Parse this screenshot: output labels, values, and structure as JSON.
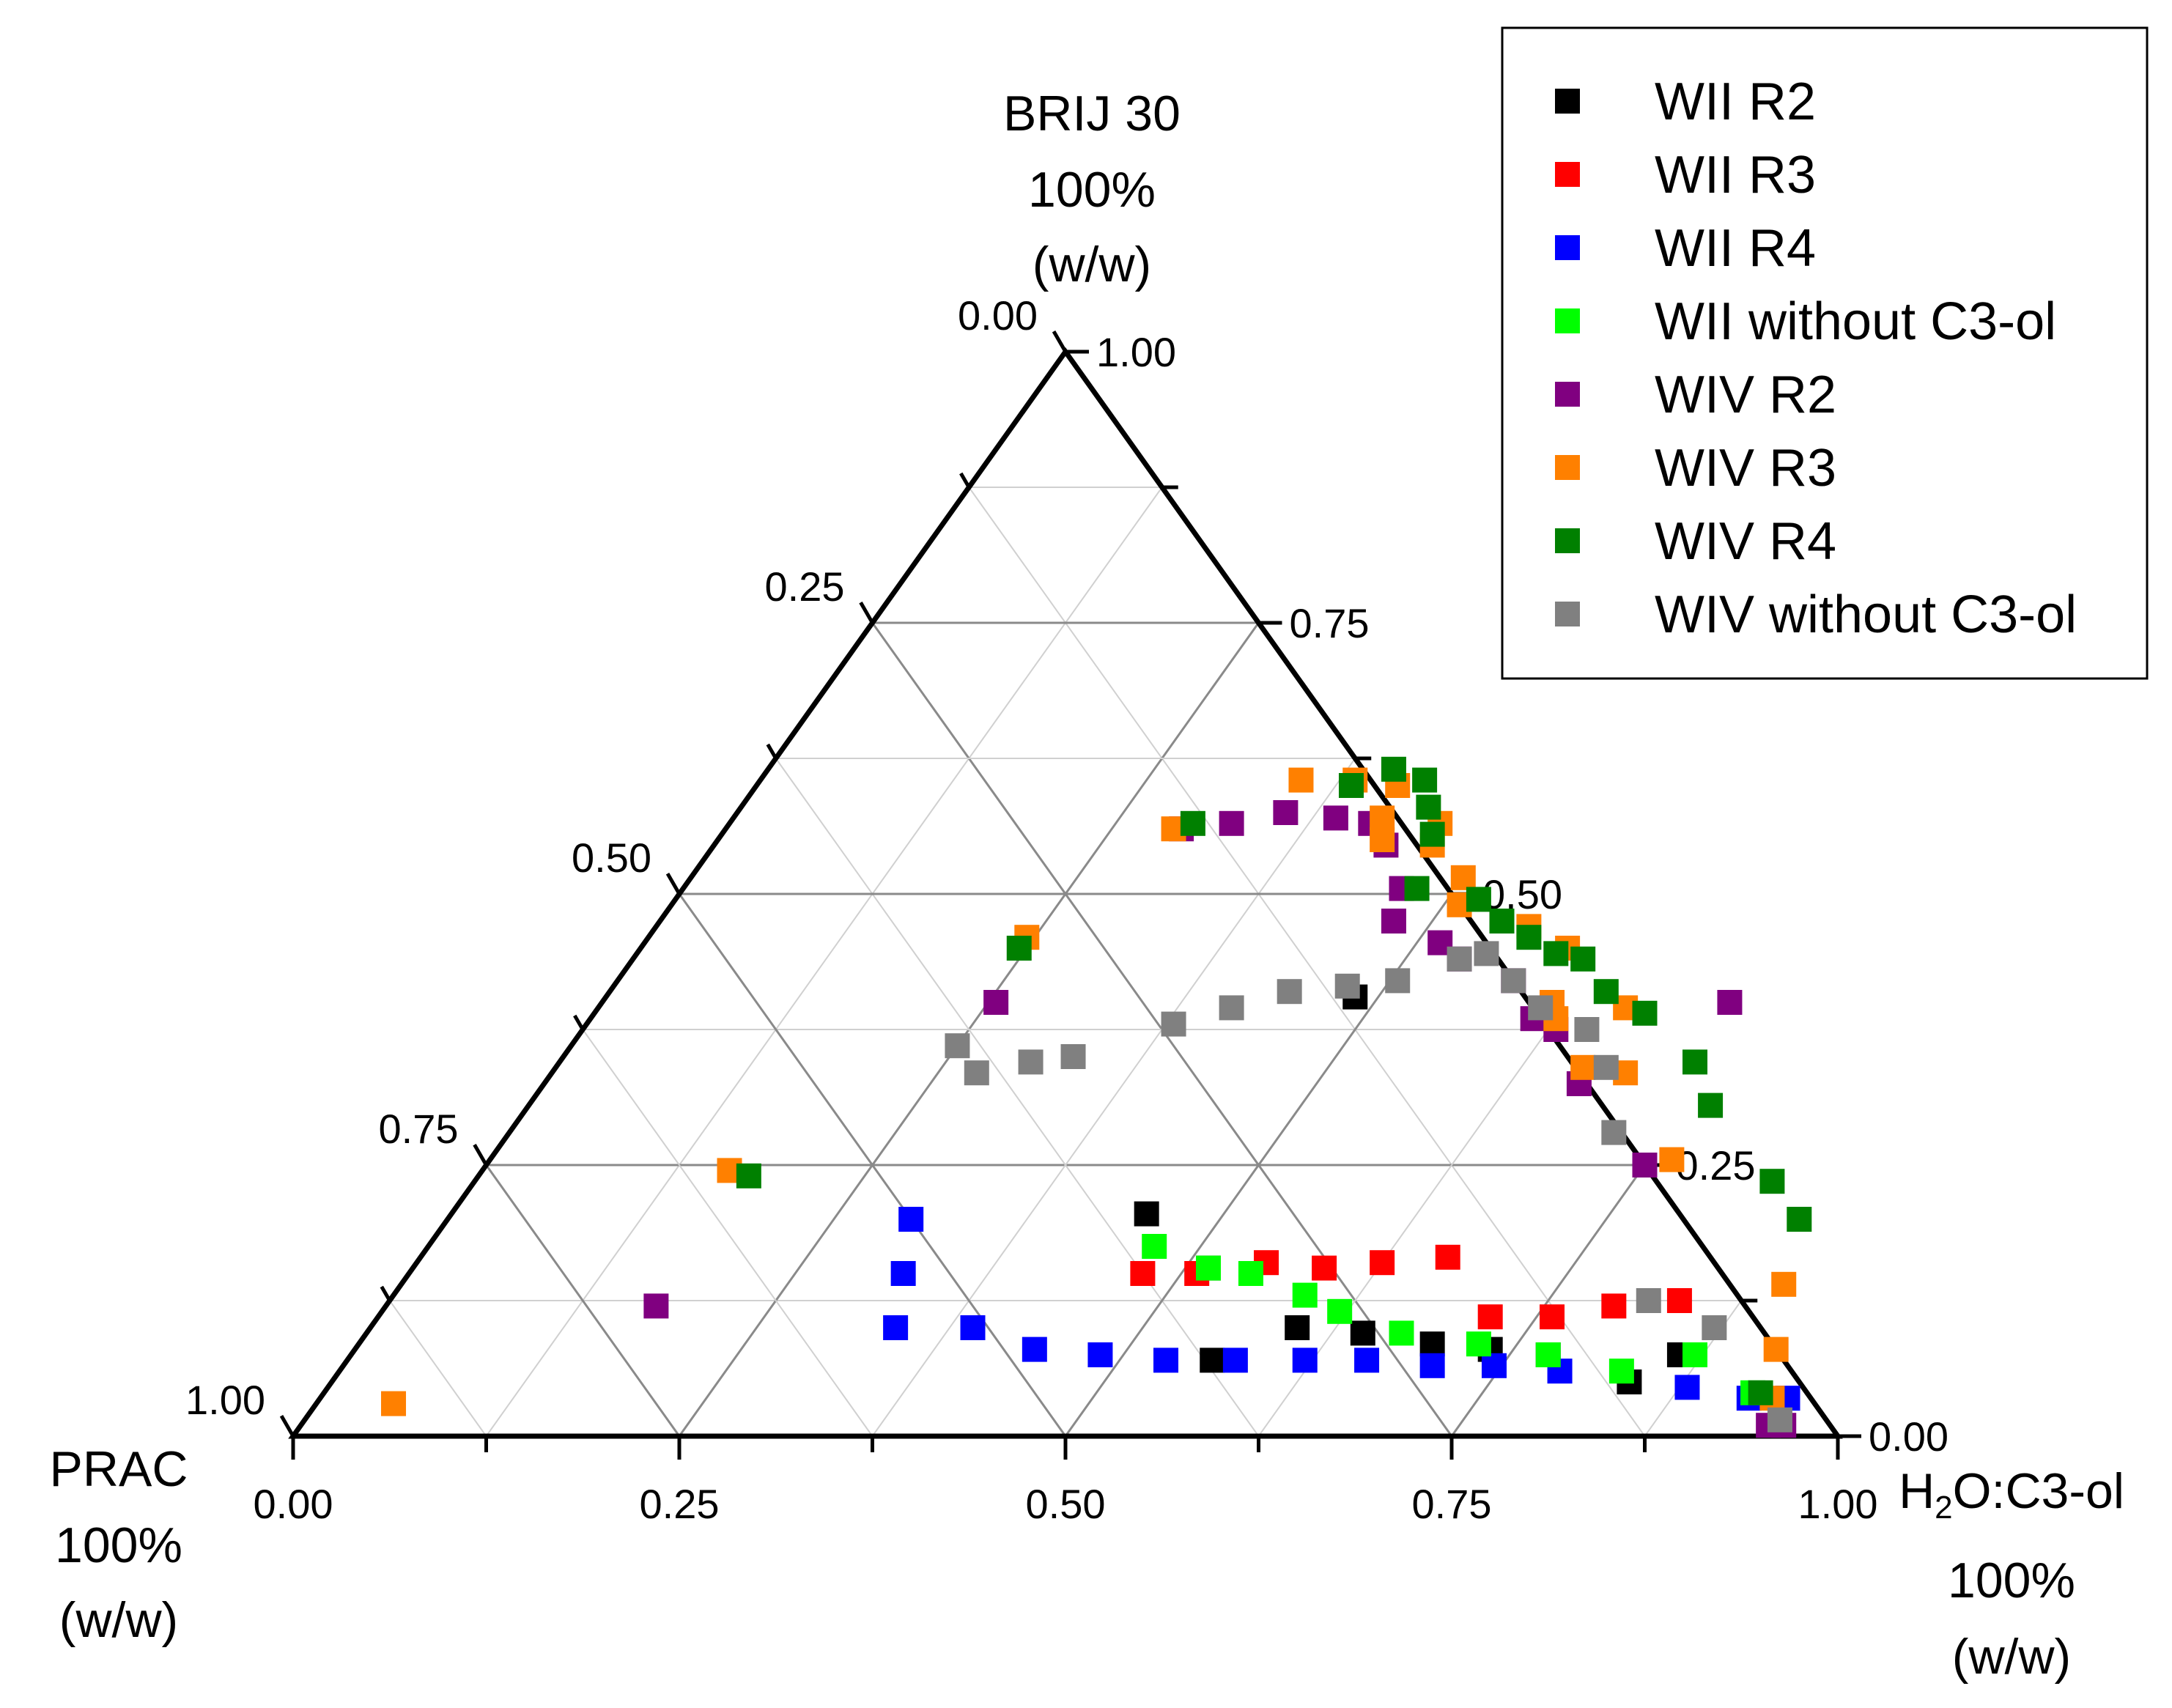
{
  "chart_data": {
    "type": "scatter",
    "subtype": "ternary",
    "components": {
      "top": {
        "name": "BRIJ 30",
        "pct": "100%",
        "unit": "(w/w)"
      },
      "left": {
        "name": "PRAC",
        "pct": "100%",
        "unit": "(w/w)"
      },
      "right": {
        "name_main": "H",
        "name_sub": "2",
        "name_rest": "O:C3-ol",
        "pct": "100%",
        "unit": "(w/w)"
      }
    },
    "ticks": {
      "bottom": [
        "0.00",
        "0.25",
        "0.50",
        "0.75",
        "1.00"
      ],
      "left": [
        "0.00",
        "0.25",
        "0.50",
        "0.75",
        "1.00"
      ],
      "right": [
        "0.00",
        "0.25",
        "0.50",
        "0.75",
        "1.00"
      ]
    },
    "grid_step": 0.125,
    "legend_position": "top-right",
    "series": [
      {
        "name": "WII R2",
        "color": "#000000",
        "points": [
          [
            0.485,
            0.405
          ],
          [
            0.45,
            0.205
          ],
          [
            0.515,
            0.155
          ],
          [
            0.56,
            0.07
          ],
          [
            0.6,
            0.1
          ],
          [
            0.645,
            0.095
          ],
          [
            0.695,
            0.085
          ],
          [
            0.735,
            0.08
          ],
          [
            0.775,
            0.075
          ],
          [
            0.84,
            0.05
          ],
          [
            0.86,
            0.075
          ]
        ]
      },
      {
        "name": "WII R3",
        "color": "#ff0000",
        "points": [
          [
            0.475,
            0.15
          ],
          [
            0.51,
            0.15
          ],
          [
            0.55,
            0.16
          ],
          [
            0.59,
            0.155
          ],
          [
            0.625,
            0.16
          ],
          [
            0.665,
            0.165
          ],
          [
            0.72,
            0.11
          ],
          [
            0.76,
            0.11
          ],
          [
            0.795,
            0.12
          ],
          [
            0.835,
            0.125
          ]
        ]
      },
      {
        "name": "WII R4",
        "color": "#0000ff",
        "points": [
          [
            0.3,
            0.2
          ],
          [
            0.32,
            0.15
          ],
          [
            0.34,
            0.1
          ],
          [
            0.39,
            0.1
          ],
          [
            0.44,
            0.08
          ],
          [
            0.485,
            0.075
          ],
          [
            0.53,
            0.07
          ],
          [
            0.575,
            0.07
          ],
          [
            0.62,
            0.07
          ],
          [
            0.66,
            0.07
          ],
          [
            0.705,
            0.065
          ],
          [
            0.745,
            0.065
          ],
          [
            0.79,
            0.06
          ],
          [
            0.88,
            0.045
          ],
          [
            0.925,
            0.035
          ],
          [
            0.95,
            0.035
          ]
        ]
      },
      {
        "name": "WII without C3-ol",
        "color": "#00ff00",
        "points": [
          [
            0.47,
            0.175
          ],
          [
            0.515,
            0.155
          ],
          [
            0.545,
            0.15
          ],
          [
            0.59,
            0.13
          ],
          [
            0.62,
            0.115
          ],
          [
            0.67,
            0.095
          ],
          [
            0.725,
            0.085
          ],
          [
            0.775,
            0.075
          ],
          [
            0.83,
            0.06
          ],
          [
            0.87,
            0.075
          ],
          [
            0.925,
            0.04
          ]
        ]
      },
      {
        "name": "WIV R2",
        "color": "#800080",
        "points": [
          [
            0.175,
            0.12
          ],
          [
            0.255,
            0.4
          ],
          [
            0.295,
            0.56
          ],
          [
            0.325,
            0.565
          ],
          [
            0.355,
            0.575
          ],
          [
            0.39,
            0.57
          ],
          [
            0.415,
            0.565
          ],
          [
            0.435,
            0.545
          ],
          [
            0.465,
            0.505
          ],
          [
            0.475,
            0.475
          ],
          [
            0.515,
            0.455
          ],
          [
            0.535,
            0.44
          ],
          [
            0.58,
            0.42
          ],
          [
            0.61,
            0.385
          ],
          [
            0.63,
            0.375
          ],
          [
            0.67,
            0.325
          ],
          [
            0.73,
            0.4
          ],
          [
            0.75,
            0.25
          ],
          [
            0.95,
            0.01
          ],
          [
            0.96,
            0.01
          ]
        ]
      },
      {
        "name": "WIV R3",
        "color": "#ff8000",
        "points": [
          [
            0.05,
            0.03
          ],
          [
            0.16,
            0.245
          ],
          [
            0.245,
            0.46
          ],
          [
            0.29,
            0.56
          ],
          [
            0.35,
            0.605
          ],
          [
            0.385,
            0.605
          ],
          [
            0.415,
            0.6
          ],
          [
            0.42,
            0.57
          ],
          [
            0.43,
            0.55
          ],
          [
            0.46,
            0.565
          ],
          [
            0.465,
            0.545
          ],
          [
            0.5,
            0.515
          ],
          [
            0.51,
            0.49
          ],
          [
            0.565,
            0.47
          ],
          [
            0.6,
            0.45
          ],
          [
            0.615,
            0.4
          ],
          [
            0.625,
            0.385
          ],
          [
            0.665,
            0.395
          ],
          [
            0.665,
            0.34
          ],
          [
            0.695,
            0.335
          ],
          [
            0.765,
            0.255
          ],
          [
            0.895,
            0.14
          ],
          [
            0.92,
            0.08
          ],
          [
            0.94,
            0.035
          ]
        ]
      },
      {
        "name": "WIV R4",
        "color": "#008000",
        "points": [
          [
            0.175,
            0.24
          ],
          [
            0.245,
            0.45
          ],
          [
            0.3,
            0.565
          ],
          [
            0.385,
            0.6
          ],
          [
            0.405,
            0.615
          ],
          [
            0.43,
            0.605
          ],
          [
            0.445,
            0.58
          ],
          [
            0.46,
            0.555
          ],
          [
            0.475,
            0.505
          ],
          [
            0.52,
            0.495
          ],
          [
            0.545,
            0.475
          ],
          [
            0.57,
            0.46
          ],
          [
            0.595,
            0.445
          ],
          [
            0.615,
            0.44
          ],
          [
            0.645,
            0.41
          ],
          [
            0.68,
            0.39
          ],
          [
            0.735,
            0.345
          ],
          [
            0.765,
            0.305
          ],
          [
            0.84,
            0.235
          ],
          [
            0.875,
            0.2
          ],
          [
            0.93,
            0.04
          ]
        ]
      },
      {
        "name": "WIV without C3-ol",
        "color": "#808080",
        "points": [
          [
            0.25,
            0.36
          ],
          [
            0.275,
            0.335
          ],
          [
            0.305,
            0.345
          ],
          [
            0.33,
            0.35
          ],
          [
            0.38,
            0.38
          ],
          [
            0.41,
            0.395
          ],
          [
            0.44,
            0.41
          ],
          [
            0.475,
            0.415
          ],
          [
            0.505,
            0.42
          ],
          [
            0.535,
            0.44
          ],
          [
            0.55,
            0.445
          ],
          [
            0.58,
            0.42
          ],
          [
            0.61,
            0.395
          ],
          [
            0.65,
            0.375
          ],
          [
            0.68,
            0.34
          ],
          [
            0.715,
            0.28
          ],
          [
            0.815,
            0.125
          ],
          [
            0.87,
            0.1
          ],
          [
            0.955,
            0.015
          ]
        ]
      }
    ]
  }
}
